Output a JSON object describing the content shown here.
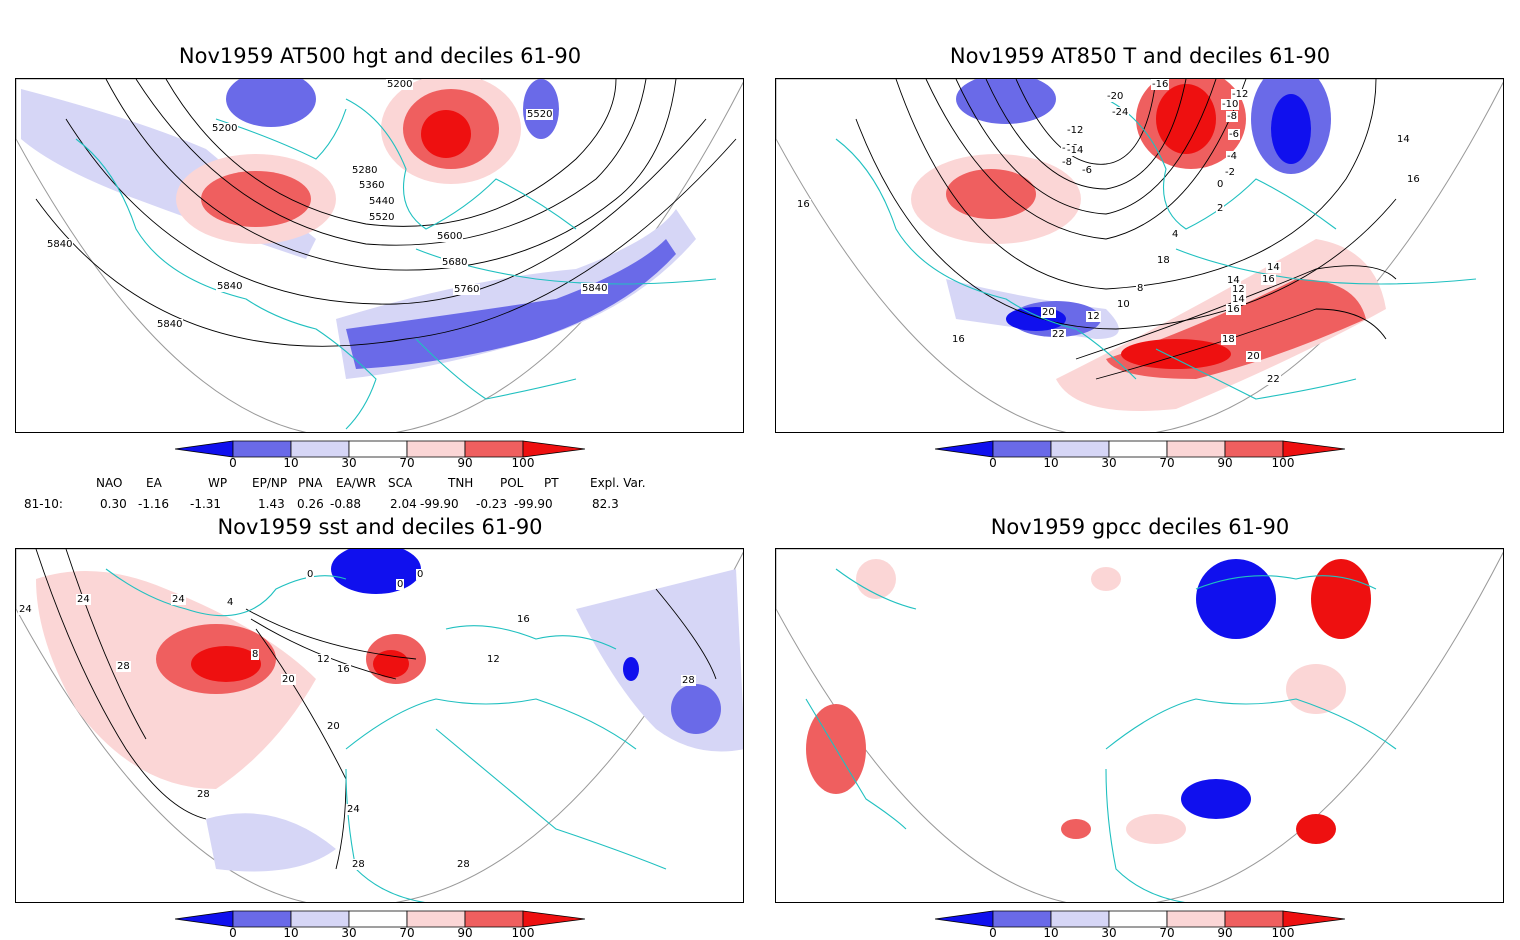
{
  "panels": [
    {
      "title": "Nov1959 AT500 hgt and deciles 61-90",
      "contour_labels": [
        "5200",
        "5200",
        "5520",
        "5280",
        "5360",
        "5440",
        "5520",
        "5600",
        "5680",
        "5760",
        "5840",
        "5840",
        "5840",
        "5840"
      ]
    },
    {
      "title": "Nov1959 AT850 T and deciles 61-90",
      "contour_labels": [
        "-16",
        "-20",
        "-24",
        "-12",
        "-10",
        "-14",
        "-8",
        "-6",
        "-12",
        "-10",
        "-8",
        "-6",
        "-4",
        "-2",
        "0",
        "2",
        "4",
        "6",
        "8",
        "10",
        "12",
        "14",
        "16",
        "14",
        "12",
        "14",
        "16",
        "18",
        "20",
        "22",
        "22",
        "20",
        "18",
        "16",
        "16",
        "16",
        "14"
      ]
    },
    {
      "title": "Nov1959 sst and deciles 61-90",
      "contour_labels": [
        "24",
        "24",
        "28",
        "24",
        "0",
        "0",
        "0",
        "4",
        "8",
        "12",
        "16",
        "20",
        "20",
        "24",
        "28",
        "28",
        "28",
        "28",
        "12",
        "16"
      ]
    },
    {
      "title": "Nov1959 gpcc deciles 61-90",
      "contour_labels": []
    }
  ],
  "colorbar": {
    "labels": [
      "0",
      "10",
      "30",
      "70",
      "90",
      "100"
    ],
    "colors": [
      "#1010ee",
      "#6a6ae8",
      "#d6d6f6",
      "#ffffff",
      "#fbd6d6",
      "#ef5f5f",
      "#ee1010"
    ]
  },
  "indices": {
    "header": [
      "NAO",
      "EA",
      "WP",
      "EP/NP",
      "PNA",
      "EA/WR",
      "SCA",
      "TNH",
      "POL",
      "PT",
      "Expl. Var."
    ],
    "row_label": "81-10:",
    "values": [
      "0.30",
      "-1.16",
      "-1.31",
      "1.43",
      "0.26",
      "-0.88",
      "2.04",
      "-99.90",
      "-0.23",
      "-99.90",
      "82.3"
    ]
  },
  "colors": {
    "coast": "#20c0c0",
    "strong_blue": "#1010ee",
    "mid_blue": "#6a6ae8",
    "light_blue": "#d6d6f6",
    "light_red": "#fbd6d6",
    "mid_red": "#ef5f5f",
    "strong_red": "#ee1010"
  }
}
